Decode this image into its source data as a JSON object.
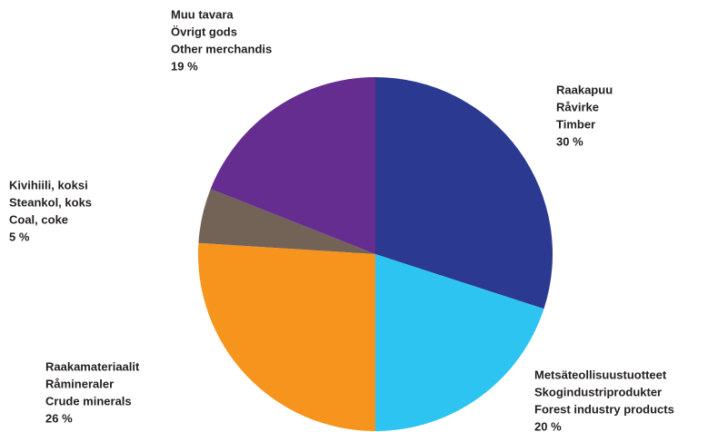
{
  "chart_data": {
    "type": "pie",
    "categories": [
      [
        "Raakapuu",
        "Råvirke",
        "Timber"
      ],
      [
        "Metsäteollisuustuotteet",
        "Skogindustriprodukter",
        "Forest industry products"
      ],
      [
        "Raakamateriaalit",
        "Råmineraler",
        "Crude minerals"
      ],
      [
        "Kivihiili, koksi",
        "Steankol, koks",
        "Coal, coke"
      ],
      [
        "Muu tavara",
        "Övrigt gods",
        "Other merchandis"
      ]
    ],
    "values": [
      30,
      20,
      26,
      5,
      19
    ],
    "value_labels": [
      "30 %",
      "20 %",
      "26 %",
      "5 %",
      "19 %"
    ],
    "colors": [
      "#2b3990",
      "#2ec4f1",
      "#f7941d",
      "#736357",
      "#662d91"
    ]
  }
}
